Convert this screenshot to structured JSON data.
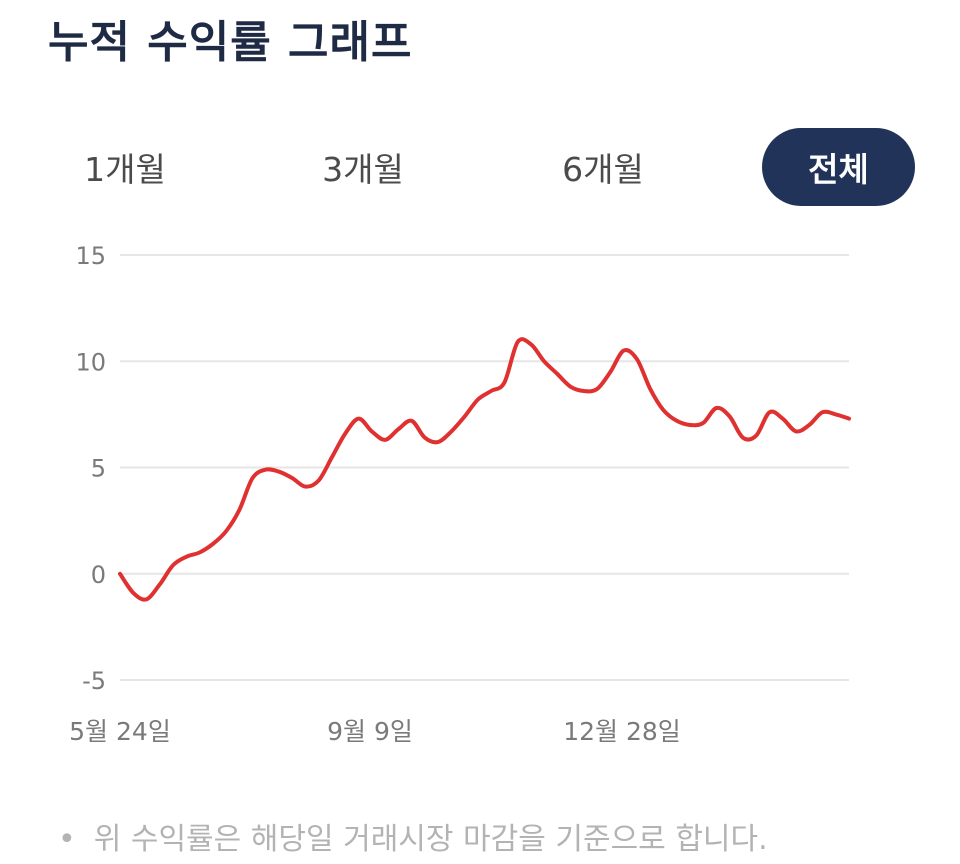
{
  "header": {
    "title": "누적 수익률 그래프"
  },
  "tabs": [
    {
      "label": "1개월",
      "active": false
    },
    {
      "label": "3개월",
      "active": false
    },
    {
      "label": "6개월",
      "active": false
    },
    {
      "label": "전체",
      "active": true
    }
  ],
  "colors": {
    "line": "#e03131",
    "active_tab": "#22335a",
    "grid": "#e6e6e6"
  },
  "chart_data": {
    "type": "line",
    "ylim": [
      -5,
      15
    ],
    "yticks": [
      15,
      10,
      5,
      0,
      -5
    ],
    "x_tick_labels": [
      "5월 24일",
      "9월 9일",
      "12월 28일"
    ],
    "grid": "horizontal",
    "series": [
      {
        "values": [
          0.0,
          -0.9,
          -1.2,
          -0.5,
          0.4,
          0.8,
          1.0,
          1.4,
          2.0,
          3.0,
          4.5,
          4.9,
          4.8,
          4.5,
          4.1,
          4.4,
          5.5,
          6.6,
          7.3,
          6.7,
          6.3,
          6.8,
          7.2,
          6.4,
          6.2,
          6.7,
          7.4,
          8.2,
          8.6,
          9.0,
          10.9,
          10.8,
          10.0,
          9.4,
          8.8,
          8.6,
          8.7,
          9.5,
          10.5,
          10.1,
          8.7,
          7.7,
          7.2,
          7.0,
          7.1,
          7.8,
          7.4,
          6.4,
          6.5,
          7.6,
          7.3,
          6.7,
          7.0,
          7.6,
          7.5,
          7.3
        ]
      }
    ]
  },
  "footnote": {
    "bullet": "•",
    "text": "위 수익률은 해당일 거래시장 마감을 기준으로 합니다."
  }
}
